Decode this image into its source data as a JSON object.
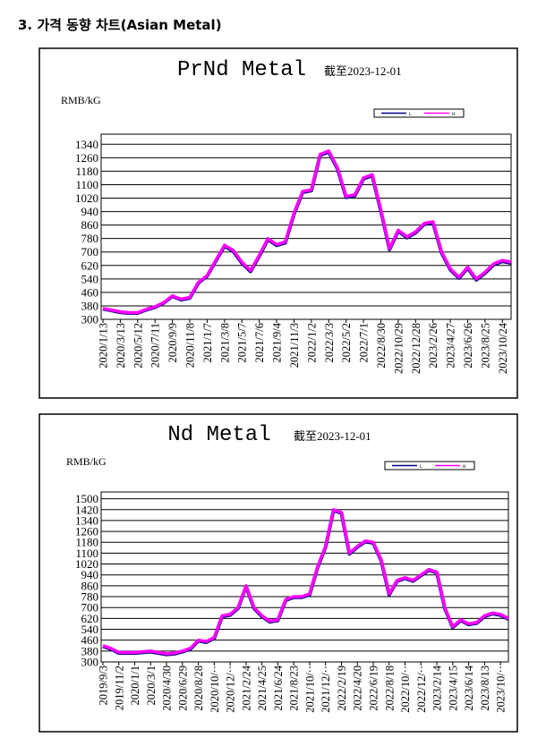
{
  "heading": "3. 가격 동향 차트(Asian Metal)",
  "chart_data": [
    {
      "type": "line",
      "title": "PrNd Metal",
      "subtitle": "截至2023-12-01",
      "y_label": "RMB/kG",
      "categories": [
        "2020/1/13",
        null,
        "2020/3/13",
        null,
        "2020/5/12",
        null,
        "2020/7/11",
        null,
        "2020/9/9",
        null,
        "2020/11/8",
        null,
        "2021/1/7",
        null,
        "2021/3/8",
        null,
        "2021/5/7",
        null,
        "2021/7/6",
        null,
        "2021/9/4",
        null,
        "2021/11/3",
        null,
        "2022/1/2",
        null,
        "2022/3/3",
        null,
        "2022/5/2",
        null,
        "2022/7/1",
        null,
        "2022/8/30",
        null,
        "2022/10/29",
        null,
        "2022/12/28",
        null,
        "2023/2/26",
        null,
        "2023/4/27",
        null,
        "2023/6/26",
        null,
        "2023/8/25",
        null,
        "2023/10/24",
        null
      ],
      "series": [
        {
          "name": "L",
          "color": "#000080",
          "values": [
            362,
            352,
            342,
            337,
            337,
            357,
            372,
            397,
            437,
            417,
            427,
            517,
            557,
            647,
            735,
            705,
            635,
            585,
            675,
            775,
            740,
            755,
            925,
            1055,
            1065,
            1275,
            1295,
            1195,
            1025,
            1035,
            1135,
            1155,
            945,
            715,
            825,
            785,
            815,
            865,
            875,
            695,
            595,
            545,
            605,
            535,
            575,
            625,
            645,
            635
          ]
        },
        {
          "name": "H",
          "color": "#ff00ff",
          "values": [
            365,
            355,
            345,
            340,
            340,
            360,
            375,
            400,
            440,
            420,
            430,
            520,
            560,
            650,
            740,
            710,
            640,
            590,
            680,
            780,
            745,
            760,
            930,
            1060,
            1070,
            1280,
            1300,
            1200,
            1030,
            1040,
            1140,
            1160,
            950,
            720,
            830,
            790,
            820,
            870,
            880,
            700,
            600,
            550,
            610,
            540,
            580,
            630,
            650,
            640
          ]
        }
      ],
      "ylim": [
        300,
        1400
      ],
      "yticks": [
        300,
        380,
        460,
        540,
        620,
        700,
        780,
        860,
        940,
        1020,
        1100,
        1180,
        1260,
        1340
      ],
      "grid": true,
      "legend": "upper right"
    },
    {
      "type": "line",
      "title": "Nd Metal",
      "subtitle": "截至2023-12-01",
      "y_label": "RMB/kG",
      "categories": [
        "2019/9/3",
        null,
        "2019/11/2",
        null,
        "2020/1/1",
        null,
        "2020/3/1",
        null,
        "2020/4/30",
        null,
        "2020/6/29",
        null,
        "2020/8/28",
        null,
        "2020/10/··",
        null,
        "2020/12/··",
        null,
        "2021/2/24",
        null,
        "2021/4/25",
        null,
        "2021/6/24",
        null,
        "2021/8/23",
        null,
        "2021/10/··",
        null,
        "2021/12/··",
        null,
        "2022/2/19",
        null,
        "2022/4/20",
        null,
        "2022/6/19",
        null,
        "2022/8/18",
        null,
        "2022/10/··",
        null,
        "2022/12/··",
        null,
        "2023/2/14",
        null,
        "2023/4/15",
        null,
        "2023/6/14",
        null,
        "2023/8/13",
        null,
        "2023/10/··",
        null
      ],
      "series": [
        {
          "name": "L",
          "color": "#000080",
          "values": [
            415,
            395,
            365,
            365,
            365,
            370,
            375,
            365,
            355,
            360,
            375,
            395,
            455,
            445,
            475,
            635,
            645,
            695,
            855,
            695,
            635,
            595,
            605,
            755,
            775,
            775,
            795,
            995,
            1145,
            1415,
            1395,
            1095,
            1145,
            1185,
            1175,
            1045,
            795,
            895,
            915,
            895,
            935,
            975,
            955,
            695,
            555,
            605,
            575,
            585,
            635,
            655,
            645,
            615
          ]
        },
        {
          "name": "H",
          "color": "#ff00ff",
          "values": [
            420,
            400,
            370,
            370,
            370,
            375,
            380,
            370,
            360,
            365,
            380,
            400,
            460,
            450,
            480,
            640,
            650,
            700,
            860,
            700,
            640,
            600,
            610,
            760,
            780,
            780,
            800,
            1000,
            1150,
            1420,
            1400,
            1100,
            1150,
            1190,
            1180,
            1050,
            800,
            900,
            920,
            900,
            940,
            980,
            960,
            700,
            560,
            610,
            580,
            590,
            640,
            660,
            650,
            620
          ]
        }
      ],
      "ylim": [
        300,
        1550
      ],
      "yticks": [
        300,
        380,
        460,
        540,
        620,
        700,
        780,
        860,
        940,
        1020,
        1100,
        1180,
        1260,
        1340,
        1420,
        1500
      ],
      "grid": true,
      "legend": "upper right"
    }
  ]
}
